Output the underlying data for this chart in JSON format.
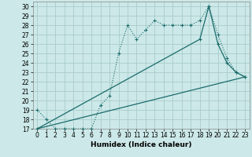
{
  "xlabel": "Humidex (Indice chaleur)",
  "bg_color": "#cce8e8",
  "line_color": "#1a6b6b",
  "grid_color": "#aacccc",
  "xlim": [
    -0.5,
    23.5
  ],
  "ylim": [
    17,
    30.5
  ],
  "xticks": [
    0,
    1,
    2,
    3,
    4,
    5,
    6,
    7,
    8,
    9,
    10,
    11,
    12,
    13,
    14,
    15,
    16,
    17,
    18,
    19,
    20,
    21,
    22,
    23
  ],
  "yticks": [
    17,
    18,
    19,
    20,
    21,
    22,
    23,
    24,
    25,
    26,
    27,
    28,
    29,
    30
  ],
  "line1_x": [
    0,
    1,
    2,
    3,
    4,
    5,
    6,
    7,
    8,
    9,
    10,
    11,
    12,
    13,
    14,
    15,
    16,
    17,
    18,
    19,
    20,
    21,
    22,
    23
  ],
  "line1_y": [
    19,
    18,
    17,
    17,
    17,
    17,
    17,
    19.5,
    20.5,
    25,
    28,
    26.5,
    27.5,
    28.5,
    28,
    28,
    28,
    28,
    28.5,
    30,
    27,
    24.5,
    23,
    22.5
  ],
  "line2_x": [
    0,
    18,
    19,
    20,
    21,
    22,
    23
  ],
  "line2_y": [
    17,
    26.5,
    30,
    26,
    24,
    23,
    22.5
  ],
  "line3_x": [
    0,
    23
  ],
  "line3_y": [
    17,
    22.5
  ],
  "xlabel_fontsize": 6.5,
  "tick_fontsize": 5.5
}
